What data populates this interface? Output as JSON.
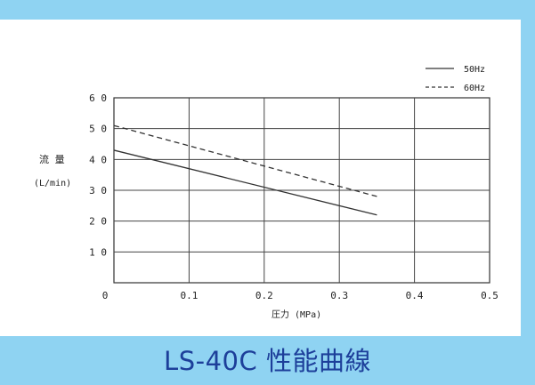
{
  "footer": {
    "title": "LS-40C  性能曲線"
  },
  "colors": {
    "frame": "#8fd3f2",
    "title_text": "#1d3f9a",
    "line": "#333333"
  },
  "chart_data": {
    "type": "line",
    "ylabel_line1": "流 量",
    "ylabel_line2": "(L/min)",
    "xlabel": "圧力 (MPa)",
    "xlim": [
      0,
      0.5
    ],
    "ylim": [
      0,
      60
    ],
    "x_ticks": [
      0,
      0.1,
      0.2,
      0.3,
      0.4,
      0.5
    ],
    "x_tick_labels": [
      "0",
      "0.1",
      "0.2",
      "0.3",
      "0.4",
      "0.5"
    ],
    "y_ticks": [
      10,
      20,
      30,
      40,
      50,
      60
    ],
    "y_tick_labels": [
      "1 0",
      "2 0",
      "3 0",
      "4 0",
      "5 0",
      "6 0"
    ],
    "grid": true,
    "legend_position": "top-right",
    "series": [
      {
        "name": "50Hz",
        "style": "solid",
        "x": [
          0,
          0.35
        ],
        "y": [
          43,
          22
        ]
      },
      {
        "name": "60Hz",
        "style": "dashed",
        "x": [
          0,
          0.35
        ],
        "y": [
          51,
          28
        ]
      }
    ]
  }
}
